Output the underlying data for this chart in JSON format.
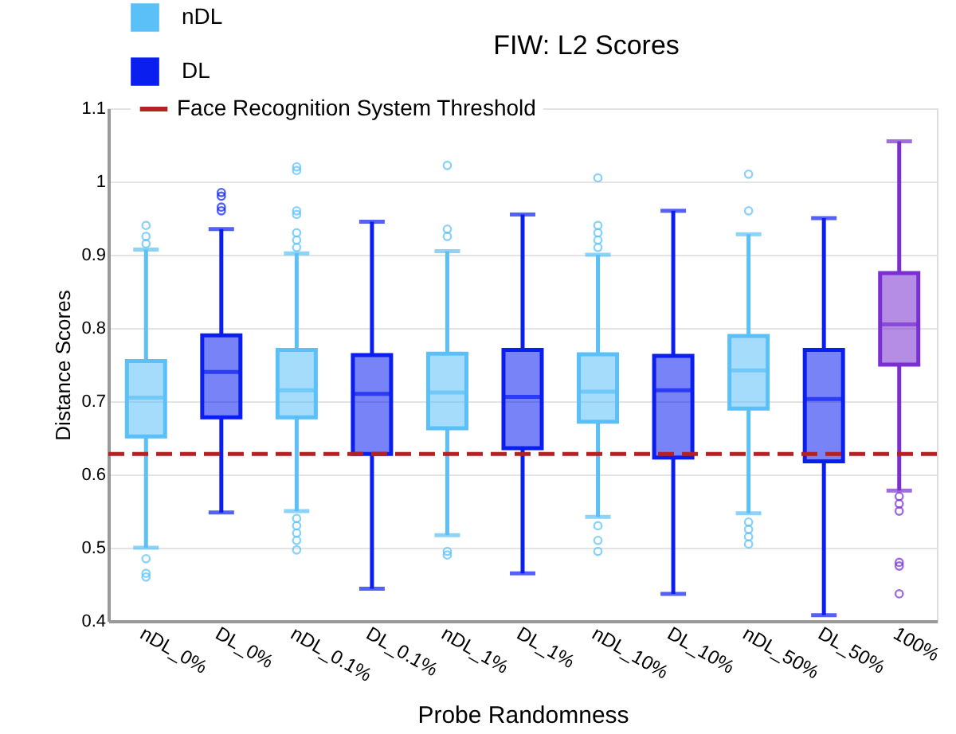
{
  "chart_data": {
    "type": "box",
    "title": "FIW: L2 Scores",
    "xlabel": "Probe Randomness",
    "ylabel": "Distance Scores",
    "categories": [
      "nDL_0%",
      "DL_0%",
      "nDL_0.1%",
      "DL_0.1%",
      "nDL_1%",
      "DL_1%",
      "nDL_10%",
      "DL_10%",
      "nDL_50%",
      "DL_50%",
      "100%"
    ],
    "ylim": [
      0.4,
      1.1
    ],
    "yticks": [
      0.4,
      0.5,
      0.6,
      0.7,
      0.8,
      0.9,
      1,
      1.1
    ],
    "grid": "y",
    "legend": "top left",
    "series": [
      {
        "name": "nDL",
        "color": "#5bc0f8",
        "boxes": [
          {
            "low": 0.5,
            "q1": 0.652,
            "median": 0.705,
            "q3": 0.755,
            "high": 0.907,
            "outliers": [
              0.94,
              0.925,
              0.915,
              0.485,
              0.465,
              0.46
            ]
          },
          null,
          {
            "low": 0.55,
            "q1": 0.678,
            "median": 0.715,
            "q3": 0.77,
            "high": 0.902,
            "outliers": [
              1.02,
              1.015,
              0.96,
              0.955,
              0.93,
              0.92,
              0.91,
              0.54,
              0.53,
              0.52,
              0.51,
              0.497
            ]
          },
          null,
          {
            "low": 0.517,
            "q1": 0.663,
            "median": 0.712,
            "q3": 0.765,
            "high": 0.905,
            "outliers": [
              1.022,
              0.935,
              0.925,
              0.495,
              0.49
            ]
          },
          null,
          {
            "low": 0.542,
            "q1": 0.672,
            "median": 0.713,
            "q3": 0.764,
            "high": 0.9,
            "outliers": [
              1.005,
              0.94,
              0.93,
              0.92,
              0.91,
              0.53,
              0.51,
              0.495
            ]
          },
          null,
          {
            "low": 0.547,
            "q1": 0.69,
            "median": 0.742,
            "q3": 0.789,
            "high": 0.928,
            "outliers": [
              1.01,
              0.96,
              0.535,
              0.525,
              0.515,
              0.505
            ]
          },
          null,
          null
        ]
      },
      {
        "name": "DL",
        "color": "#0a1ef0",
        "boxes": [
          null,
          {
            "low": 0.548,
            "q1": 0.678,
            "median": 0.74,
            "q3": 0.79,
            "high": 0.935,
            "outliers": [
              0.985,
              0.98,
              0.965,
              0.96
            ]
          },
          null,
          {
            "low": 0.444,
            "q1": 0.628,
            "median": 0.71,
            "q3": 0.763,
            "high": 0.945
          },
          null,
          {
            "low": 0.465,
            "q1": 0.636,
            "median": 0.706,
            "q3": 0.77,
            "high": 0.955
          },
          null,
          {
            "low": 0.437,
            "q1": 0.623,
            "median": 0.715,
            "q3": 0.762,
            "high": 0.96
          },
          null,
          {
            "low": 0.408,
            "q1": 0.618,
            "median": 0.703,
            "q3": 0.77,
            "high": 0.95
          },
          null
        ]
      },
      {
        "color": "#7a2fd0",
        "boxes": [
          null,
          null,
          null,
          null,
          null,
          null,
          null,
          null,
          null,
          null,
          {
            "low": 0.578,
            "q1": 0.75,
            "median": 0.805,
            "q3": 0.875,
            "high": 1.055,
            "outliers": [
              0.57,
              0.56,
              0.55,
              0.48,
              0.475,
              0.437
            ]
          }
        ]
      }
    ],
    "ref_lines": [
      {
        "axis": "y",
        "value": 0.628,
        "label": "Face Recognition System Threshold",
        "color": "#b22222",
        "line_style": "dashed"
      }
    ]
  }
}
